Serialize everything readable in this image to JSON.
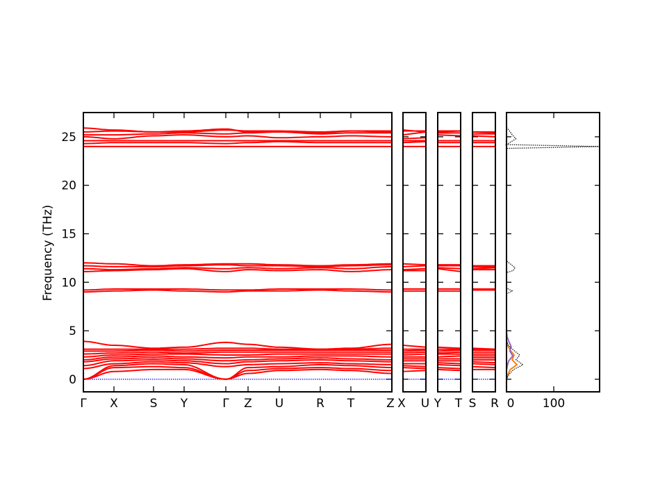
{
  "chart_data": {
    "type": "line",
    "ylabel": "Frequency (THz)",
    "ylim": [
      -1.3,
      27.5
    ],
    "yticks": [
      0,
      5,
      10,
      15,
      20,
      25
    ],
    "grid": false,
    "band_color": "#ff0000",
    "zero_line_color": "#0000ff",
    "main_path": {
      "kpoints": [
        "Γ",
        "X",
        "S",
        "Y",
        "Γ",
        "Z",
        "U",
        "R",
        "T",
        "Z"
      ],
      "bands": [
        [
          0,
          0.8,
          1.0,
          1.0,
          0,
          0.6,
          0.9,
          1.0,
          0.9,
          0.6
        ],
        [
          0,
          1.2,
          1.3,
          1.2,
          0,
          0.9,
          1.1,
          1.2,
          1.1,
          0.9
        ],
        [
          0,
          1.4,
          1.6,
          1.5,
          0,
          1.2,
          1.3,
          1.5,
          1.4,
          1.2
        ],
        [
          1.1,
          1.6,
          1.8,
          1.7,
          1.3,
          1.5,
          1.6,
          1.7,
          1.6,
          1.5
        ],
        [
          1.4,
          1.9,
          2.0,
          1.9,
          1.6,
          1.8,
          1.9,
          2.0,
          1.9,
          1.8
        ],
        [
          1.8,
          2.1,
          2.2,
          2.1,
          1.9,
          2.0,
          2.1,
          2.2,
          2.1,
          2.0
        ],
        [
          2.0,
          2.3,
          2.4,
          2.3,
          2.2,
          2.3,
          2.3,
          2.4,
          2.4,
          2.3
        ],
        [
          2.3,
          2.5,
          2.6,
          2.6,
          2.5,
          2.5,
          2.6,
          2.6,
          2.6,
          2.6
        ],
        [
          2.6,
          2.7,
          2.8,
          2.7,
          2.8,
          2.8,
          2.8,
          2.8,
          2.8,
          2.8
        ],
        [
          2.9,
          2.9,
          3.0,
          2.9,
          3.0,
          3.0,
          3.0,
          3.0,
          3.0,
          3.0
        ],
        [
          3.1,
          3.1,
          3.1,
          3.1,
          3.2,
          3.2,
          3.1,
          3.1,
          3.1,
          3.2
        ],
        [
          3.9,
          3.5,
          3.2,
          3.3,
          3.8,
          3.6,
          3.3,
          3.1,
          3.2,
          3.6
        ],
        [
          9.0,
          9.1,
          9.2,
          9.1,
          9.0,
          9.1,
          9.1,
          9.2,
          9.1,
          9.0
        ],
        [
          9.2,
          9.3,
          9.3,
          9.3,
          9.2,
          9.2,
          9.3,
          9.3,
          9.3,
          9.2
        ],
        [
          11.1,
          11.2,
          11.3,
          11.4,
          11.1,
          11.3,
          11.2,
          11.3,
          11.1,
          11.3
        ],
        [
          11.4,
          11.3,
          11.4,
          11.5,
          11.4,
          11.5,
          11.4,
          11.5,
          11.4,
          11.6
        ],
        [
          11.7,
          11.6,
          11.6,
          11.7,
          11.8,
          11.7,
          11.7,
          11.6,
          11.7,
          11.8
        ],
        [
          12.0,
          11.9,
          11.7,
          11.8,
          11.9,
          11.9,
          11.8,
          11.7,
          11.8,
          11.9
        ],
        [
          24.0,
          24.0,
          24.0,
          24.0,
          24.0,
          24.0,
          24.0,
          24.0,
          24.0,
          24.0
        ],
        [
          24.3,
          24.4,
          24.4,
          24.4,
          24.3,
          24.4,
          24.5,
          24.4,
          24.4,
          24.4
        ],
        [
          24.6,
          24.6,
          24.6,
          24.6,
          24.6,
          24.6,
          24.6,
          24.6,
          24.6,
          24.6
        ],
        [
          25.0,
          24.8,
          25.1,
          25.2,
          25.0,
          25.1,
          24.9,
          25.0,
          25.1,
          25.0
        ],
        [
          25.2,
          25.2,
          25.3,
          25.4,
          25.3,
          25.4,
          25.5,
          25.3,
          25.4,
          25.4
        ],
        [
          25.5,
          25.6,
          25.5,
          25.5,
          25.7,
          25.6,
          25.6,
          25.5,
          25.6,
          25.6
        ],
        [
          25.9,
          25.7,
          25.5,
          25.6,
          25.8,
          25.5,
          25.5,
          25.4,
          25.6,
          25.5
        ]
      ]
    },
    "side_paths": [
      {
        "kpoints": [
          "X",
          "U"
        ]
      },
      {
        "kpoints": [
          "Y",
          "T"
        ]
      },
      {
        "kpoints": [
          "S",
          "R"
        ]
      }
    ],
    "dos": {
      "xlabel_ticks": [
        0,
        100
      ],
      "xlim": [
        0,
        197
      ],
      "total_color": "#000000",
      "partial_colors": [
        "#1f77b4",
        "#ff7f0e",
        "#9467bd",
        "#8c564b"
      ],
      "total": [
        [
          0,
          0
        ],
        [
          0.5,
          5
        ],
        [
          1.0,
          15
        ],
        [
          1.5,
          35
        ],
        [
          2.0,
          20
        ],
        [
          2.5,
          28
        ],
        [
          3.0,
          15
        ],
        [
          3.5,
          4
        ],
        [
          4,
          0
        ],
        [
          8.8,
          0
        ],
        [
          9.1,
          12
        ],
        [
          9.4,
          0
        ],
        [
          11.0,
          0
        ],
        [
          11.2,
          14
        ],
        [
          11.5,
          18
        ],
        [
          11.9,
          8
        ],
        [
          12.2,
          0
        ],
        [
          23.8,
          0
        ],
        [
          24.0,
          197
        ],
        [
          24.2,
          0
        ],
        [
          24.5,
          10
        ],
        [
          24.8,
          20
        ],
        [
          25.2,
          12
        ],
        [
          25.5,
          8
        ],
        [
          26,
          0
        ]
      ],
      "partial": [
        [
          0,
          0
        ],
        [
          0.5,
          3
        ],
        [
          1.0,
          8
        ],
        [
          1.5,
          22
        ],
        [
          2.0,
          12
        ],
        [
          2.5,
          16
        ],
        [
          3.0,
          8
        ],
        [
          3.5,
          2
        ],
        [
          4,
          0
        ]
      ]
    }
  }
}
